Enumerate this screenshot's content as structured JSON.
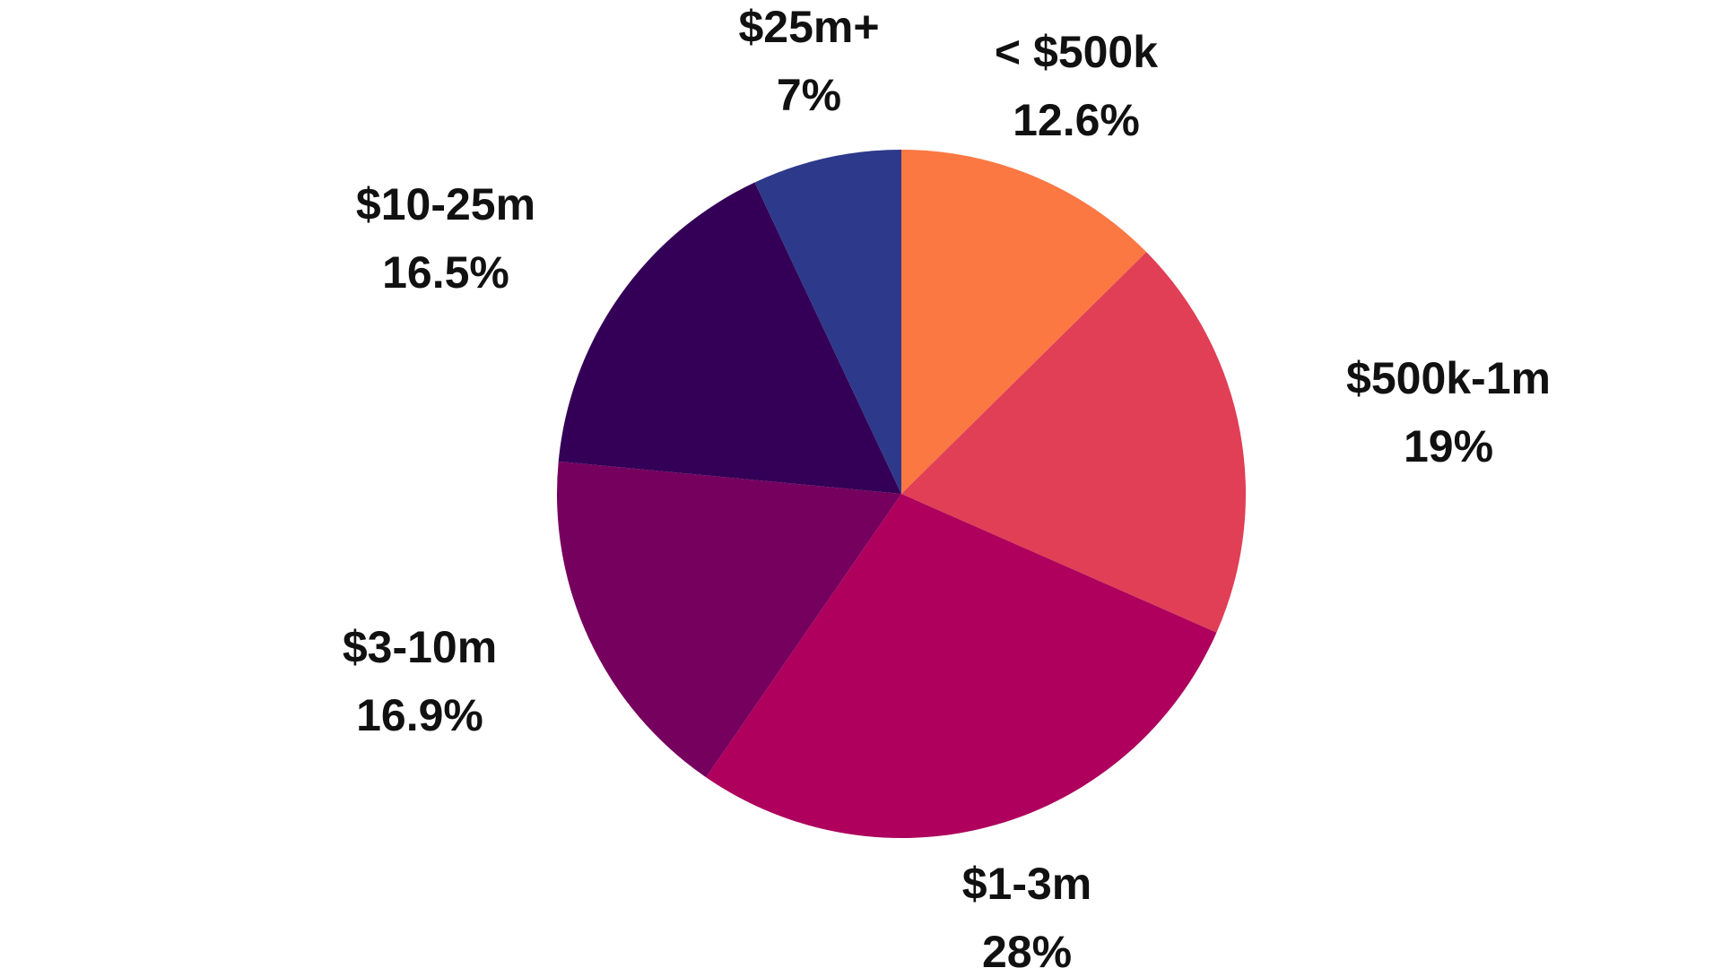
{
  "chart_data": {
    "type": "pie",
    "title": "",
    "start_angle_deg": 0,
    "direction": "clockwise",
    "slices": [
      {
        "label": "< $500k",
        "value": 12.6,
        "display": "12.6%",
        "color": "#FC7843"
      },
      {
        "label": "$500k-1m",
        "value": 19,
        "display": "19%",
        "color": "#E03F56"
      },
      {
        "label": "$1-3m",
        "value": 28,
        "display": "28%",
        "color": "#AE005C"
      },
      {
        "label": "$3-10m",
        "value": 16.9,
        "display": "16.9%",
        "color": "#76005E"
      },
      {
        "label": "$10-25m",
        "value": 16.5,
        "display": "16.5%",
        "color": "#340057"
      },
      {
        "label": "$25m+",
        "value": 7,
        "display": "7%",
        "color": "#2D398A"
      }
    ]
  }
}
